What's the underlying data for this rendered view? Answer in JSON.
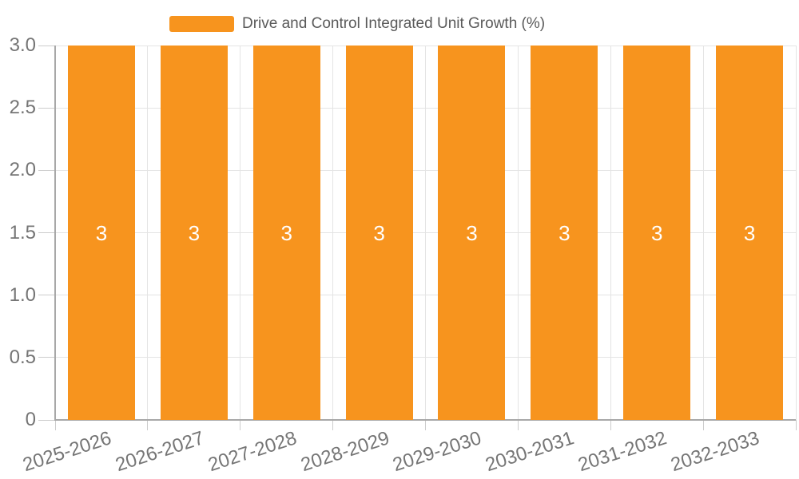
{
  "legend": {
    "label": "Drive and Control Integrated Unit Growth (%)"
  },
  "chart_data": {
    "type": "bar",
    "title": "",
    "categories": [
      "2025-2026",
      "2026-2027",
      "2027-2028",
      "2028-2029",
      "2029-2030",
      "2030-2031",
      "2031-2032",
      "2032-2033"
    ],
    "series": [
      {
        "name": "Drive and Control Integrated Unit Growth (%)",
        "values": [
          3,
          3,
          3,
          3,
          3,
          3,
          3,
          3
        ]
      }
    ],
    "bar_value_labels": [
      "3",
      "3",
      "3",
      "3",
      "3",
      "3",
      "3",
      "3"
    ],
    "xlabel": "",
    "ylabel": "",
    "ylim": [
      0,
      3
    ],
    "yticks": [
      0,
      0.5,
      1,
      1.5,
      2,
      2.5,
      3
    ],
    "ytick_labels": [
      "0",
      "0.5",
      "1.0",
      "1.5",
      "2.0",
      "2.5",
      "3.0"
    ],
    "grid": true,
    "legend_position": "top-center",
    "x_label_rotation_deg": 18,
    "value_label_position": "inside-middle"
  },
  "colors": {
    "bar": "#f7941e",
    "grid_line": "#e4e4e4",
    "axis_line": "#a8a8a8",
    "tick_mark": "#cccccc",
    "tick_label_text": "#757575",
    "legend_text": "#5a5a5a",
    "bar_value_text": "#ffffff",
    "background": "#ffffff"
  }
}
